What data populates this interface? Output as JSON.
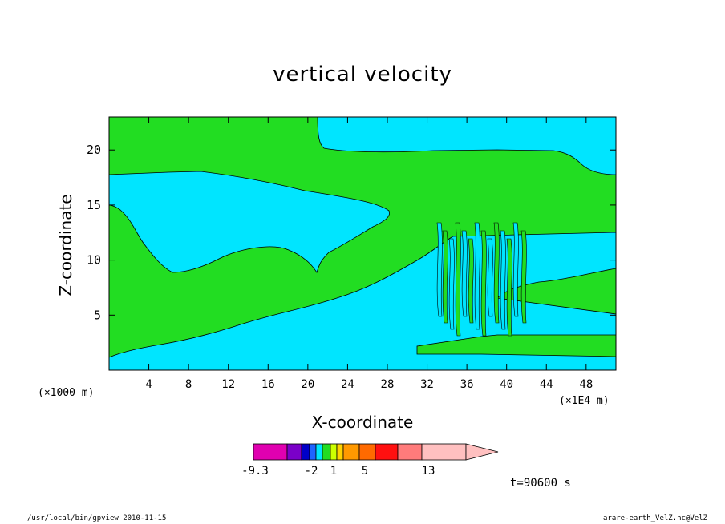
{
  "chart_data": {
    "type": "heatmap",
    "title": "vertical velocity",
    "xlabel": "X-coordinate",
    "ylabel": "Z-coordinate",
    "x_unit_left": "(×1000 m)",
    "x_unit_right": "(×1E4 m)",
    "xlim": [
      0,
      51
    ],
    "ylim": [
      0,
      23
    ],
    "x_ticks": [
      4,
      8,
      12,
      16,
      20,
      24,
      28,
      32,
      36,
      40,
      44,
      48
    ],
    "y_ticks": [
      5,
      10,
      15,
      20
    ],
    "dominant_levels": [
      {
        "name": "negative",
        "color": "#00e5ff"
      },
      {
        "name": "near-zero",
        "color": "#22dd22"
      }
    ],
    "colorbar": {
      "colors": [
        "#e000b0",
        "#7a00c8",
        "#0000c8",
        "#1e64ff",
        "#00e5ff",
        "#22dd22",
        "#ccff00",
        "#ffd200",
        "#ff9900",
        "#ff6a00",
        "#ff1010",
        "#ff7b7b",
        "#ffc0c0"
      ],
      "labels": [
        "-9.3",
        "-2",
        "1",
        "5",
        "13"
      ]
    },
    "time_label": "t=90600 s"
  },
  "footer": {
    "left": "/usr/local/bin/gpview  2010-11-15",
    "right": "arare-earth_VelZ.nc@VelZ"
  }
}
